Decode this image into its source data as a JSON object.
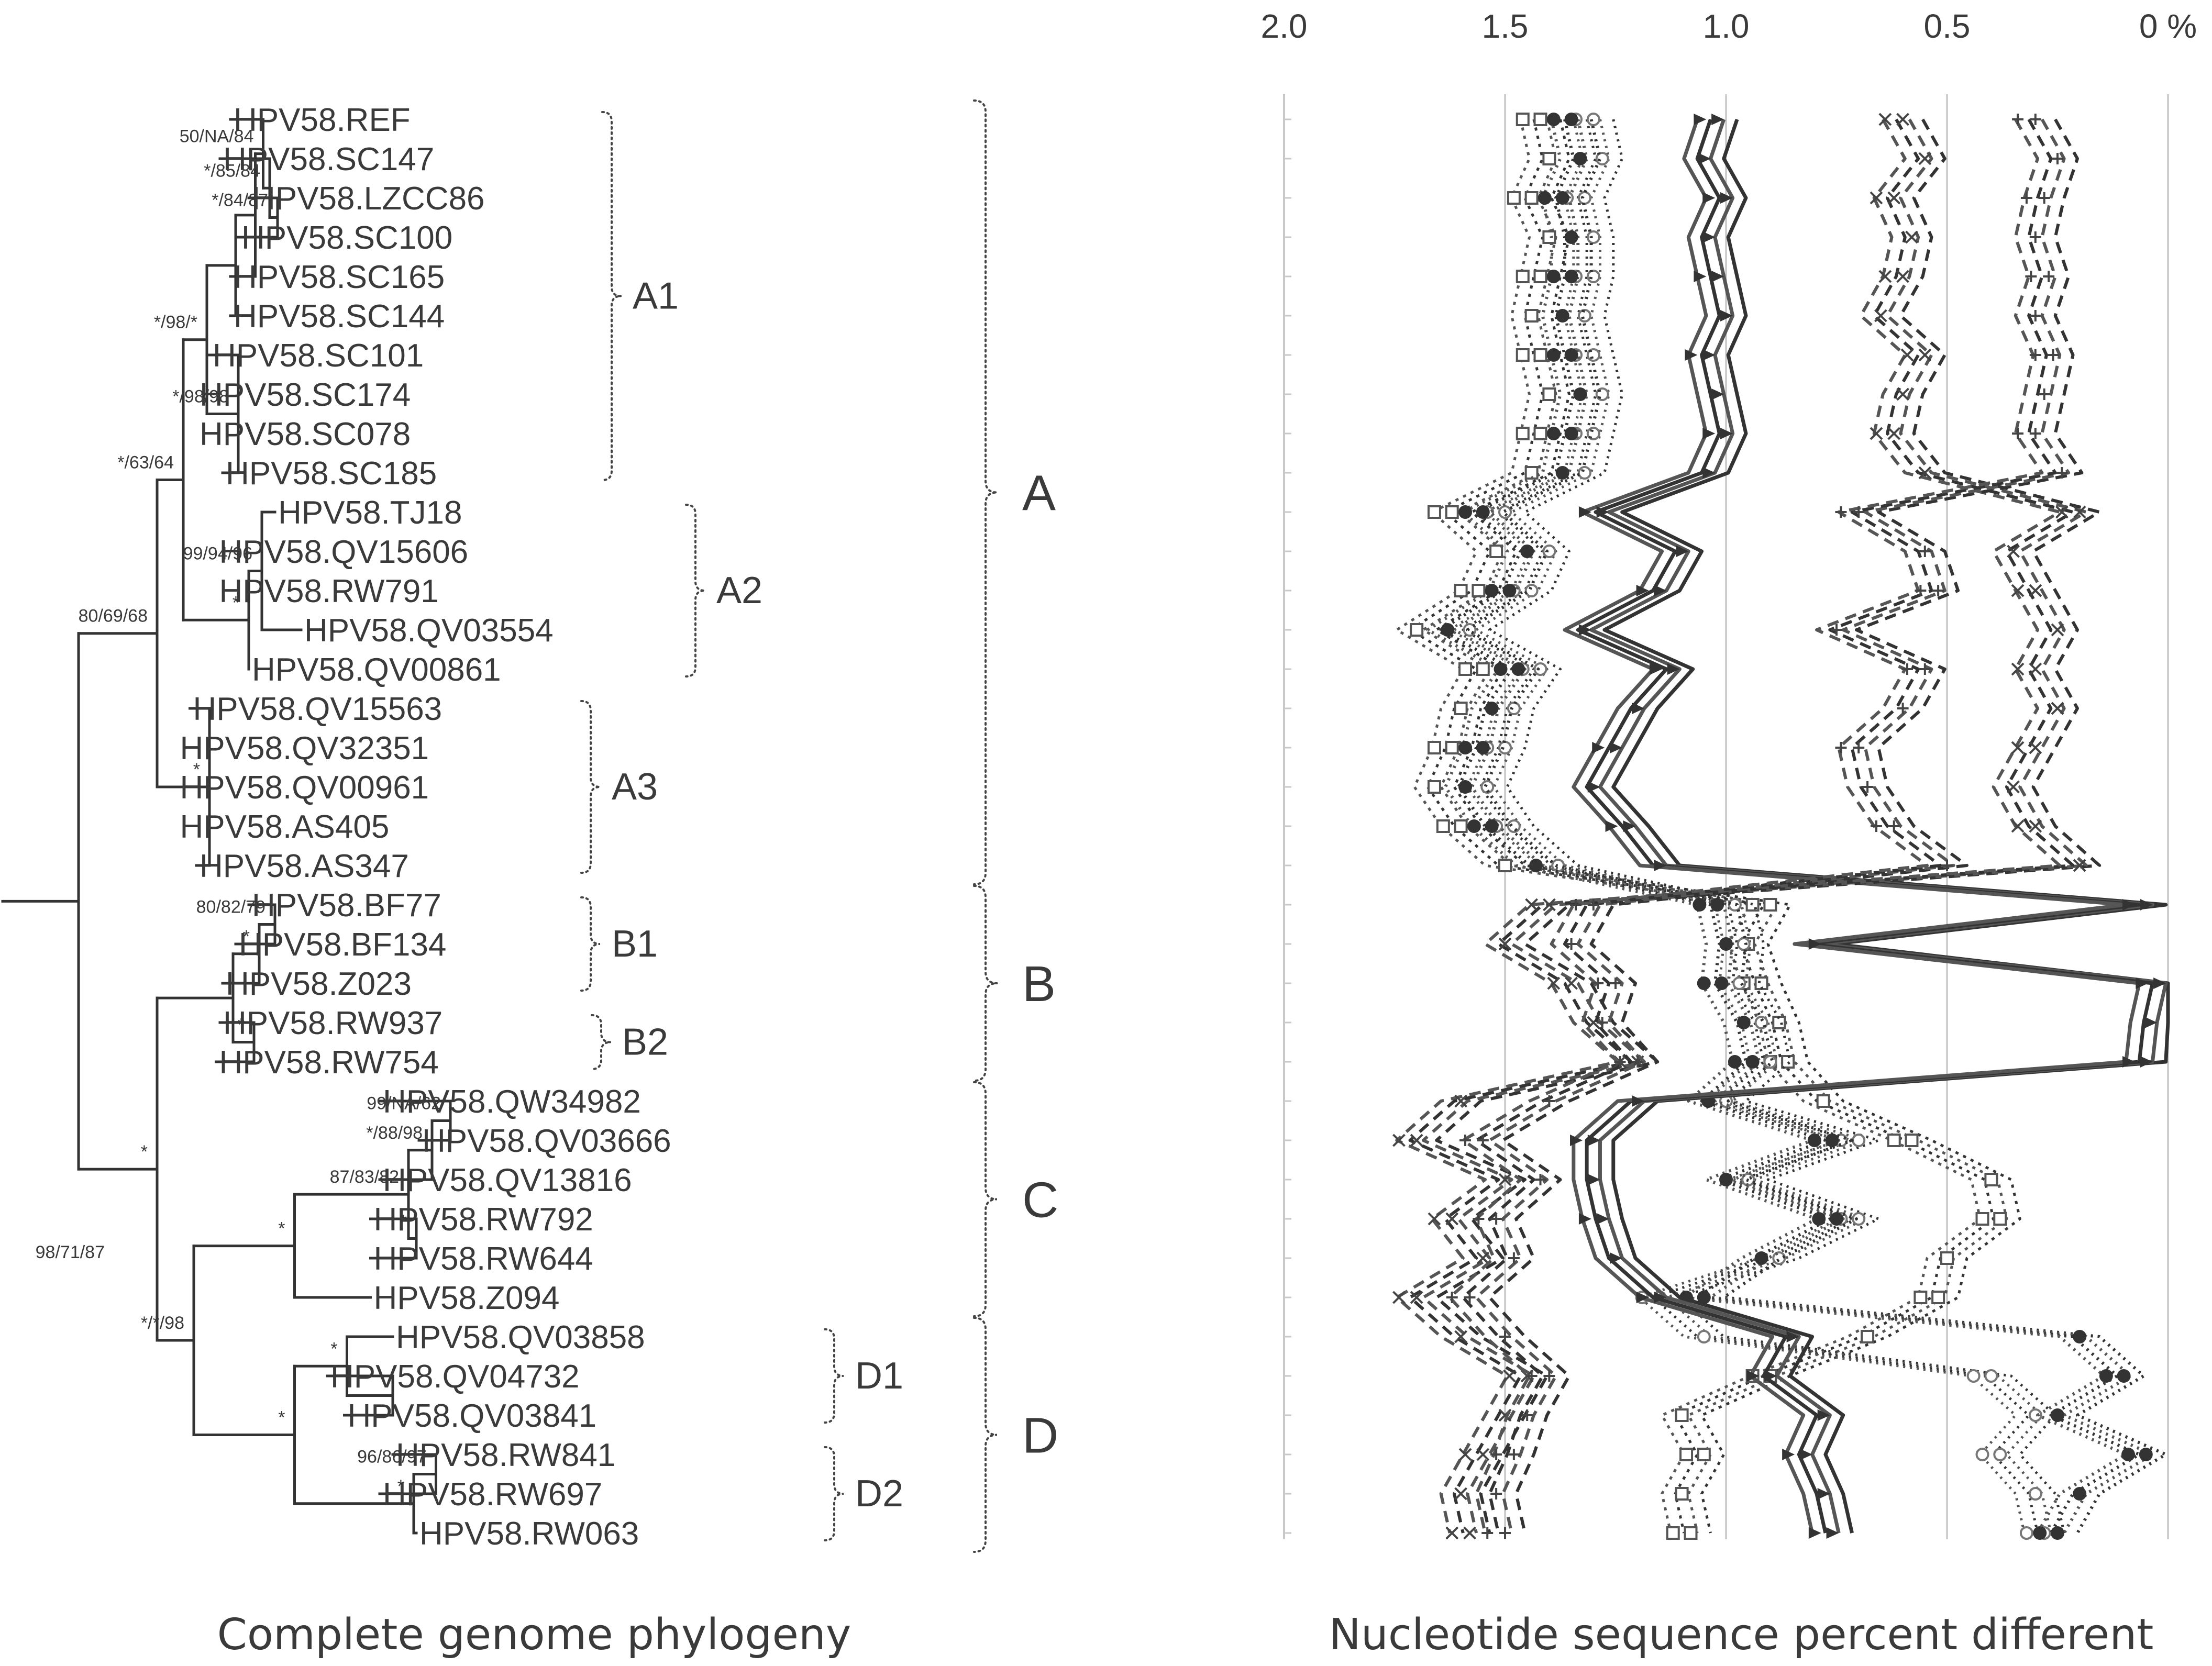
{
  "tree": {
    "taxa": [
      {
        "label": "HPV58.REF",
        "x": 0.176,
        "row": 0
      },
      {
        "label": "HPV58.SC147",
        "x": 0.168,
        "row": 1
      },
      {
        "label": "HPV58.LZCC86",
        "x": 0.19,
        "row": 2
      },
      {
        "label": "HPV58.SC100",
        "x": 0.182,
        "row": 3
      },
      {
        "label": "HPV58.SC165",
        "x": 0.176,
        "row": 4
      },
      {
        "label": "HPV58.SC144",
        "x": 0.176,
        "row": 5
      },
      {
        "label": "HPV58.SC101",
        "x": 0.16,
        "row": 6
      },
      {
        "label": "HPV58.SC174",
        "x": 0.15,
        "row": 7
      },
      {
        "label": "HPV58.SC078",
        "x": 0.15,
        "row": 8
      },
      {
        "label": "HPV58.SC185",
        "x": 0.17,
        "row": 9
      },
      {
        "label": "HPV58.TJ18",
        "x": 0.21,
        "row": 10
      },
      {
        "label": "HPV58.QV15606",
        "x": 0.165,
        "row": 11
      },
      {
        "label": "HPV58.RW791",
        "x": 0.165,
        "row": 12
      },
      {
        "label": "HPV58.QV03554",
        "x": 0.23,
        "row": 13
      },
      {
        "label": "HPV58.QV00861",
        "x": 0.19,
        "row": 14
      },
      {
        "label": "HPV58.QV15563",
        "x": 0.145,
        "row": 15
      },
      {
        "label": "HPV58.QV32351",
        "x": 0.135,
        "row": 16
      },
      {
        "label": "HPV58.QV00961",
        "x": 0.135,
        "row": 17
      },
      {
        "label": "HPV58.AS405",
        "x": 0.135,
        "row": 18
      },
      {
        "label": "HPV58.AS347",
        "x": 0.15,
        "row": 19
      },
      {
        "label": "HPV58.BF77",
        "x": 0.19,
        "row": 20
      },
      {
        "label": "HPV58.BF134",
        "x": 0.18,
        "row": 21
      },
      {
        "label": "HPV58.Z023",
        "x": 0.17,
        "row": 22
      },
      {
        "label": "HPV58.RW937",
        "x": 0.168,
        "row": 23
      },
      {
        "label": "HPV58.RW754",
        "x": 0.165,
        "row": 24
      },
      {
        "label": "HPV58.QW34982",
        "x": 0.29,
        "row": 25
      },
      {
        "label": "HPV58.QV03666",
        "x": 0.32,
        "row": 26
      },
      {
        "label": "HPV58.QV13816",
        "x": 0.29,
        "row": 27
      },
      {
        "label": "HPV58.RW792",
        "x": 0.283,
        "row": 28
      },
      {
        "label": "HPV58.RW644",
        "x": 0.283,
        "row": 29
      },
      {
        "label": "HPV58.Z094",
        "x": 0.283,
        "row": 30
      },
      {
        "label": "HPV58.QV03858",
        "x": 0.3,
        "row": 31
      },
      {
        "label": "HPV58.QV04732",
        "x": 0.25,
        "row": 32
      },
      {
        "label": "HPV58.QV03841",
        "x": 0.263,
        "row": 33
      },
      {
        "label": "HPV58.RW841",
        "x": 0.3,
        "row": 34
      },
      {
        "label": "HPV58.RW697",
        "x": 0.29,
        "row": 35
      },
      {
        "label": "HPV58.RW063",
        "x": 0.318,
        "row": 36
      }
    ],
    "root_x": 0.0,
    "nodes": [
      {
        "id": "root",
        "x": 0.06,
        "top": "nA",
        "bottom": "nBCD"
      },
      {
        "id": "nA",
        "x": 0.12,
        "top": "nA12",
        "bottom": "nA3"
      },
      {
        "id": "nA12",
        "x": 0.14,
        "top": "nA1",
        "bottom": "nA2"
      },
      {
        "id": "nA1",
        "x": 0.158,
        "top": "nA1a",
        "bottom": "nA1b"
      },
      {
        "id": "nA1a",
        "x": 0.18,
        "top": "nA1c",
        "bottom": "t5"
      },
      {
        "id": "nA1c",
        "x": 0.195,
        "top": "nA1d",
        "bottom": "t4"
      },
      {
        "id": "nA1d",
        "x": 0.201,
        "top": "t0",
        "bottom": "nA1e"
      },
      {
        "id": "nA1e",
        "x": 0.206,
        "top": "t1",
        "bottom": "nA1f"
      },
      {
        "id": "nA1f",
        "x": 0.212,
        "top": "t2",
        "bottom": "t3"
      },
      {
        "id": "nA1b",
        "x": 0.182,
        "top": "t6",
        "bottom": "t9"
      },
      {
        "id": "nA2",
        "x": 0.19,
        "top": "nA2a",
        "bottom": "t14"
      },
      {
        "id": "nA2a",
        "x": 0.2,
        "top": "t10",
        "bottom": "t13"
      },
      {
        "id": "nA3",
        "x": 0.16,
        "top": "t15",
        "bottom": "t19"
      },
      {
        "id": "nBCD",
        "x": 0.12,
        "top": "nB",
        "bottom": "nCD"
      },
      {
        "id": "nB",
        "x": 0.178,
        "top": "nB1",
        "bottom": "nB2"
      },
      {
        "id": "nB1",
        "x": 0.198,
        "top": "nB1a",
        "bottom": "t22"
      },
      {
        "id": "nB1a",
        "x": 0.21,
        "top": "t20",
        "bottom": "t21"
      },
      {
        "id": "nB2",
        "x": 0.194,
        "top": "t23",
        "bottom": "t24"
      },
      {
        "id": "nCD",
        "x": 0.148,
        "top": "nC",
        "bottom": "nD"
      },
      {
        "id": "nC",
        "x": 0.225,
        "top": "nC1",
        "bottom": "t30"
      },
      {
        "id": "nC1",
        "x": 0.312,
        "top": "nC2",
        "bottom": "nC3"
      },
      {
        "id": "nC2",
        "x": 0.33,
        "top": "nC2a",
        "bottom": "t27"
      },
      {
        "id": "nC2a",
        "x": 0.344,
        "top": "t25",
        "bottom": "t26"
      },
      {
        "id": "nC3",
        "x": 0.318,
        "top": "t28",
        "bottom": "t29"
      },
      {
        "id": "nD",
        "x": 0.225,
        "top": "nD1",
        "bottom": "nD2"
      },
      {
        "id": "nD1",
        "x": 0.265,
        "top": "t31",
        "bottom": "nD1a"
      },
      {
        "id": "nD1a",
        "x": 0.3,
        "top": "t32",
        "bottom": "t33"
      },
      {
        "id": "nD2",
        "x": 0.316,
        "top": "nD2a",
        "bottom": "t36"
      },
      {
        "id": "nD2a",
        "x": 0.333,
        "top": "t34",
        "bottom": "t35"
      }
    ],
    "bootstrap": [
      {
        "label": "*/85/84",
        "node": "nA1e"
      },
      {
        "label": "50/NA/84",
        "node": "nA1d"
      },
      {
        "label": "*/84/87",
        "node": "nA1f"
      },
      {
        "label": "*/98/*",
        "node": "nA1"
      },
      {
        "label": "*/63/64",
        "node": "nA12"
      },
      {
        "label": "*/98/98",
        "node": "nA1b"
      },
      {
        "label": "80/69/68",
        "node": "nA"
      },
      {
        "label": "99/94/96",
        "node": "nA2a"
      },
      {
        "label": "*",
        "node": "nA2"
      },
      {
        "label": "*",
        "node": "nA3"
      },
      {
        "label": "80/82/79",
        "node": "nB1a"
      },
      {
        "label": "*",
        "node": "nB1"
      },
      {
        "label": "*",
        "node": "nB2"
      },
      {
        "label": "*",
        "node": "nBCD"
      },
      {
        "label": "99/NA/62",
        "node": "nC2a"
      },
      {
        "label": "*/88/98",
        "node": "nC2"
      },
      {
        "label": "87/83/82",
        "node": "nC1"
      },
      {
        "label": "*",
        "node": "nC"
      },
      {
        "label": "*",
        "node": "nC3"
      },
      {
        "label": "98/71/87",
        "node": "nBCD2"
      },
      {
        "label": "*",
        "node": "nD1"
      },
      {
        "label": "*/*/98",
        "node": "nCD"
      },
      {
        "label": "96/86/97",
        "node": "nD2a"
      },
      {
        "label": "*",
        "node": "nD"
      },
      {
        "label": "*",
        "node": "nD2"
      }
    ],
    "lineages": [
      {
        "label": "A1",
        "from": 0,
        "to": 9
      },
      {
        "label": "A2",
        "from": 10,
        "to": 14
      },
      {
        "label": "A3",
        "from": 15,
        "to": 19
      },
      {
        "label": "B1",
        "from": 20,
        "to": 22
      },
      {
        "label": "B2",
        "from": 23,
        "to": 24
      },
      {
        "label": "D1",
        "from": 31,
        "to": 33
      },
      {
        "label": "D2",
        "from": 34,
        "to": 36
      }
    ],
    "major_lineages": [
      {
        "label": "A",
        "from": 0,
        "to": 19
      },
      {
        "label": "B",
        "from": 20,
        "to": 24
      },
      {
        "label": "C",
        "from": 25,
        "to": 30
      },
      {
        "label": "D",
        "from": 31,
        "to": 36
      }
    ],
    "caption": "Complete genome phylogeny"
  },
  "chart_data": {
    "type": "line",
    "orientation": "rows-are-taxa",
    "xlabel": "Nucleotide sequence percent different",
    "x_ticks": [
      "2.0",
      "1.5",
      "1.0",
      "0.5",
      "0 %"
    ],
    "x_tick_values": [
      2.0,
      1.5,
      1.0,
      0.5,
      0
    ],
    "xlim": [
      2.0,
      0
    ],
    "gridlines": [
      1.5,
      1.0,
      0.5,
      0
    ],
    "rows": 37,
    "series": [
      {
        "name": "",
        "group": "C",
        "style": "square-dotted",
        "values": [
          1.42,
          1.4,
          1.44,
          1.4,
          1.42,
          1.44,
          1.42,
          1.4,
          1.42,
          1.44,
          1.62,
          1.52,
          1.56,
          1.7,
          1.55,
          1.6,
          1.62,
          1.66,
          1.6,
          1.5,
          0.9,
          0.95,
          0.92,
          0.88,
          0.86,
          0.78,
          0.58,
          0.4,
          0.38,
          0.5,
          0.52,
          0.68,
          0.9,
          1.1,
          1.05,
          1.1,
          1.08
        ]
      },
      {
        "name": "",
        "group": "C",
        "style": "circle-dotted",
        "values": [
          1.3,
          1.28,
          1.32,
          1.3,
          1.3,
          1.32,
          1.3,
          1.28,
          1.3,
          1.32,
          1.5,
          1.4,
          1.44,
          1.58,
          1.42,
          1.48,
          1.5,
          1.54,
          1.48,
          1.38,
          0.98,
          0.96,
          0.97,
          0.92,
          0.9,
          1.0,
          0.7,
          0.95,
          0.7,
          0.88,
          1.15,
          1.05,
          0.4,
          0.3,
          0.38,
          0.3,
          0.28
        ]
      },
      {
        "name": "",
        "group": "D",
        "style": "dot-dotted",
        "values": [
          1.35,
          1.33,
          1.37,
          1.35,
          1.35,
          1.37,
          1.35,
          1.33,
          1.35,
          1.37,
          1.55,
          1.45,
          1.49,
          1.63,
          1.47,
          1.53,
          1.55,
          1.59,
          1.53,
          1.43,
          1.02,
          1.0,
          1.01,
          0.96,
          0.94,
          1.04,
          0.76,
          1.0,
          0.75,
          0.92,
          1.05,
          0.2,
          0.1,
          0.25,
          0.05,
          0.2,
          0.25
        ]
      },
      {
        "name": "",
        "group": "B",
        "style": "tri-solid",
        "values": [
          1.02,
          1.05,
          1.0,
          1.04,
          1.02,
          1.0,
          1.04,
          1.02,
          1.0,
          1.04,
          1.28,
          1.1,
          1.15,
          1.32,
          1.12,
          1.2,
          1.25,
          1.3,
          1.22,
          1.15,
          0.05,
          0.8,
          0.02,
          0.04,
          0.05,
          1.2,
          1.3,
          1.3,
          1.28,
          1.25,
          1.15,
          0.85,
          0.9,
          0.78,
          0.82,
          0.78,
          0.76
        ]
      },
      {
        "name": "",
        "group": "A",
        "style": "x-dashed",
        "values": [
          0.6,
          0.55,
          0.62,
          0.58,
          0.6,
          0.65,
          0.55,
          0.6,
          0.62,
          0.55,
          0.2,
          0.35,
          0.3,
          0.25,
          0.3,
          0.25,
          0.3,
          0.35,
          0.3,
          0.2,
          1.4,
          1.5,
          1.35,
          1.3,
          1.2,
          1.6,
          1.7,
          1.5,
          1.62,
          1.55,
          1.7,
          1.6,
          1.45,
          1.5,
          1.55,
          1.6,
          1.58
        ]
      },
      {
        "name": "",
        "group": "A",
        "style": "plus-dashed",
        "values": [
          0.3,
          0.25,
          0.28,
          0.3,
          0.27,
          0.3,
          0.26,
          0.28,
          0.3,
          0.24,
          0.7,
          0.55,
          0.52,
          0.75,
          0.55,
          0.6,
          0.7,
          0.68,
          0.62,
          0.5,
          1.3,
          1.35,
          1.25,
          1.28,
          1.2,
          1.4,
          1.55,
          1.42,
          1.52,
          1.48,
          1.58,
          1.5,
          1.4,
          1.45,
          1.48,
          1.52,
          1.5
        ]
      }
    ]
  }
}
